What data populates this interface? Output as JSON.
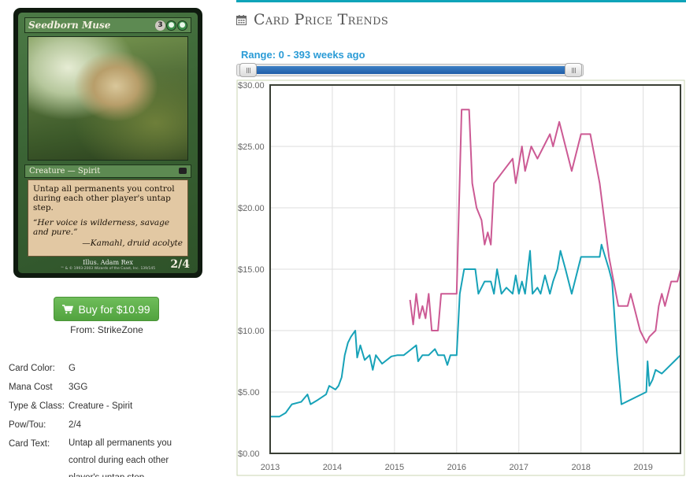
{
  "card_image": {
    "name": "Seedborn Muse",
    "mana": [
      "3",
      "G",
      "G"
    ],
    "type_line": "Creature — Spirit",
    "rules_text": "Untap all permanents you control during each other player's untap step.",
    "flavor_text": "“Her voice is wilderness, savage and pure.”",
    "flavor_attribution": "—Kamahl, druid acolyte",
    "illustrator": "Illus. Adam Rex",
    "copyright": "™ & © 1993-2003 Wizards of the Coast, Inc. 139/145",
    "power_toughness": "2/4"
  },
  "buy": {
    "label": "Buy for $10.99",
    "from": "From: StrikeZone",
    "color": "#5cb14a"
  },
  "details": [
    {
      "label": "Card Color:",
      "value": "G"
    },
    {
      "label": "Mana Cost",
      "value": "3GG"
    },
    {
      "label": "Type & Class:",
      "value": "Creature - Spirit"
    },
    {
      "label": "Pow/Tou:",
      "value": "2/4"
    },
    {
      "label": "Card Text:",
      "value": "Untap all permanents you control during each other player's untap step."
    }
  ],
  "header": {
    "title": "Card Price Trends",
    "icon": "calendar-icon",
    "accent": "#0fa4b9"
  },
  "range": {
    "label": "Range: 0 - 393 weeks ago",
    "min_weeks": 0,
    "max_weeks": 393,
    "selected_low": 0,
    "selected_high": 393
  },
  "chart_data": {
    "type": "line",
    "x_axis": {
      "min": 2013.0,
      "max": 2019.6,
      "ticks": [
        2013,
        2014,
        2015,
        2016,
        2017,
        2018,
        2019
      ]
    },
    "y_axis": {
      "min": 0,
      "max": 30,
      "ticks": [
        "$0.00",
        "$5.00",
        "$10.00",
        "$15.00",
        "$20.00",
        "$25.00",
        "$30.00"
      ],
      "tick_values": [
        0,
        5,
        10,
        15,
        20,
        25,
        30
      ]
    },
    "grid": true,
    "series": [
      {
        "color": "#17a2b8",
        "points": [
          [
            2013.0,
            3.0
          ],
          [
            2013.15,
            3.0
          ],
          [
            2013.25,
            3.3
          ],
          [
            2013.35,
            4.0
          ],
          [
            2013.5,
            4.2
          ],
          [
            2013.6,
            4.8
          ],
          [
            2013.65,
            4.0
          ],
          [
            2013.75,
            4.3
          ],
          [
            2013.9,
            4.8
          ],
          [
            2013.95,
            5.5
          ],
          [
            2014.05,
            5.2
          ],
          [
            2014.1,
            5.5
          ],
          [
            2014.15,
            6.2
          ],
          [
            2014.2,
            8.0
          ],
          [
            2014.25,
            9.0
          ],
          [
            2014.3,
            9.5
          ],
          [
            2014.37,
            10.0
          ],
          [
            2014.4,
            7.8
          ],
          [
            2014.45,
            8.8
          ],
          [
            2014.52,
            7.6
          ],
          [
            2014.6,
            8.0
          ],
          [
            2014.65,
            6.8
          ],
          [
            2014.7,
            8.0
          ],
          [
            2014.8,
            7.3
          ],
          [
            2014.85,
            7.5
          ],
          [
            2014.95,
            7.9
          ],
          [
            2015.05,
            8.0
          ],
          [
            2015.15,
            8.0
          ],
          [
            2015.25,
            8.4
          ],
          [
            2015.35,
            8.8
          ],
          [
            2015.38,
            7.5
          ],
          [
            2015.45,
            8.0
          ],
          [
            2015.55,
            8.0
          ],
          [
            2015.65,
            8.5
          ],
          [
            2015.7,
            8.0
          ],
          [
            2015.8,
            8.0
          ],
          [
            2015.85,
            7.2
          ],
          [
            2015.9,
            8.0
          ],
          [
            2016.0,
            8.0
          ],
          [
            2016.05,
            13.0
          ],
          [
            2016.12,
            15.0
          ],
          [
            2016.3,
            15.0
          ],
          [
            2016.35,
            13.0
          ],
          [
            2016.45,
            14.0
          ],
          [
            2016.55,
            14.0
          ],
          [
            2016.6,
            13.0
          ],
          [
            2016.65,
            15.0
          ],
          [
            2016.72,
            13.0
          ],
          [
            2016.8,
            13.5
          ],
          [
            2016.9,
            13.0
          ],
          [
            2016.95,
            14.5
          ],
          [
            2017.0,
            13.0
          ],
          [
            2017.05,
            14.0
          ],
          [
            2017.1,
            13.0
          ],
          [
            2017.18,
            16.5
          ],
          [
            2017.22,
            13.0
          ],
          [
            2017.3,
            13.5
          ],
          [
            2017.35,
            13.0
          ],
          [
            2017.42,
            14.5
          ],
          [
            2017.5,
            13.0
          ],
          [
            2017.55,
            14.0
          ],
          [
            2017.62,
            15.0
          ],
          [
            2017.67,
            16.5
          ],
          [
            2017.75,
            15.0
          ],
          [
            2017.85,
            13.0
          ],
          [
            2018.0,
            16.0
          ],
          [
            2018.3,
            16.0
          ],
          [
            2018.33,
            17.0
          ],
          [
            2018.45,
            15.0
          ],
          [
            2018.5,
            14.0
          ],
          [
            2018.58,
            8.0
          ],
          [
            2018.65,
            4.0
          ],
          [
            2019.05,
            5.0
          ],
          [
            2019.07,
            7.5
          ],
          [
            2019.1,
            5.5
          ],
          [
            2019.15,
            6.0
          ],
          [
            2019.2,
            6.8
          ],
          [
            2019.3,
            6.5
          ],
          [
            2019.4,
            7.0
          ],
          [
            2019.5,
            7.5
          ],
          [
            2019.6,
            8.0
          ]
        ]
      },
      {
        "color": "#cc5a94",
        "points": [
          [
            2015.25,
            12.5
          ],
          [
            2015.3,
            10.5
          ],
          [
            2015.35,
            13.0
          ],
          [
            2015.4,
            11.0
          ],
          [
            2015.45,
            12.0
          ],
          [
            2015.5,
            11.0
          ],
          [
            2015.55,
            13.0
          ],
          [
            2015.6,
            10.0
          ],
          [
            2015.7,
            10.0
          ],
          [
            2015.75,
            13.0
          ],
          [
            2016.0,
            13.0
          ],
          [
            2016.08,
            28.0
          ],
          [
            2016.2,
            28.0
          ],
          [
            2016.25,
            22.0
          ],
          [
            2016.32,
            20.0
          ],
          [
            2016.4,
            19.0
          ],
          [
            2016.45,
            17.0
          ],
          [
            2016.5,
            18.0
          ],
          [
            2016.55,
            17.0
          ],
          [
            2016.6,
            22.0
          ],
          [
            2016.75,
            23.0
          ],
          [
            2016.9,
            24.0
          ],
          [
            2016.95,
            22.0
          ],
          [
            2017.05,
            25.0
          ],
          [
            2017.1,
            23.0
          ],
          [
            2017.2,
            25.0
          ],
          [
            2017.3,
            24.0
          ],
          [
            2017.4,
            25.0
          ],
          [
            2017.5,
            26.0
          ],
          [
            2017.55,
            25.0
          ],
          [
            2017.65,
            27.0
          ],
          [
            2017.75,
            25.0
          ],
          [
            2017.85,
            23.0
          ],
          [
            2018.0,
            26.0
          ],
          [
            2018.15,
            26.0
          ],
          [
            2018.3,
            22.0
          ],
          [
            2018.45,
            16.0
          ],
          [
            2018.6,
            12.0
          ],
          [
            2018.75,
            12.0
          ],
          [
            2018.8,
            13.0
          ],
          [
            2018.85,
            12.0
          ],
          [
            2018.95,
            10.0
          ],
          [
            2019.0,
            9.5
          ],
          [
            2019.05,
            9.0
          ],
          [
            2019.1,
            9.5
          ],
          [
            2019.2,
            10.0
          ],
          [
            2019.25,
            12.0
          ],
          [
            2019.3,
            13.0
          ],
          [
            2019.35,
            12.0
          ],
          [
            2019.45,
            14.0
          ],
          [
            2019.55,
            14.0
          ],
          [
            2019.6,
            15.0
          ]
        ]
      }
    ]
  }
}
